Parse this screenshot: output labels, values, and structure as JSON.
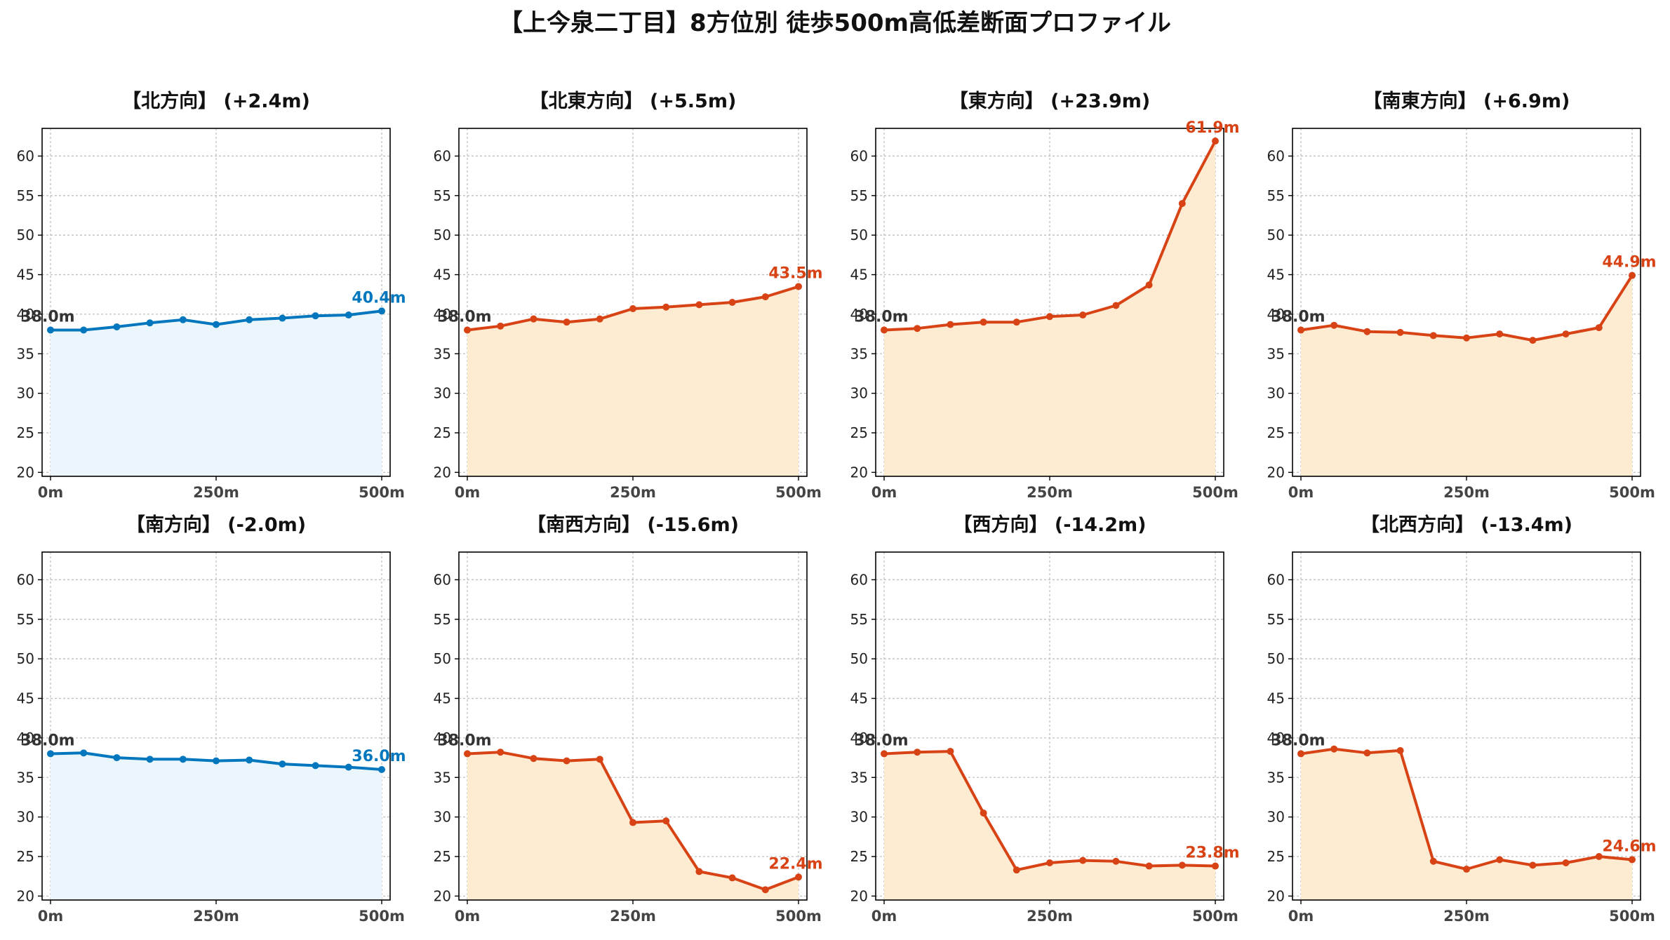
{
  "title": "【上今泉二丁目】8方位別 徒歩500m高低差断面プロファイル",
  "colors": {
    "up": "#d84315",
    "up_fill": "#fdecd2",
    "down": "#0277bd",
    "down_fill": "#eaf6fc"
  },
  "chart_data": [
    {
      "type": "area",
      "title": "【北方向】 (+2.4m)",
      "x": [
        "0m",
        "50m",
        "100m",
        "150m",
        "200m",
        "250m",
        "300m",
        "350m",
        "400m",
        "450m",
        "500m"
      ],
      "xticks": [
        "0m",
        "250m",
        "500m"
      ],
      "yticks": [
        "20",
        "25",
        "30",
        "35",
        "40",
        "45",
        "50",
        "55",
        "60"
      ],
      "ylim": [
        19.5,
        63.5
      ],
      "values": [
        38.0,
        38.0,
        38.4,
        38.9,
        39.3,
        38.7,
        39.3,
        39.5,
        39.8,
        39.9,
        40.4
      ],
      "start_label": "38.0m",
      "end_label": "40.4m",
      "trend": "down",
      "grid": true
    },
    {
      "type": "area",
      "title": "【北東方向】 (+5.5m)",
      "x": [
        "0m",
        "50m",
        "100m",
        "150m",
        "200m",
        "250m",
        "300m",
        "350m",
        "400m",
        "450m",
        "500m"
      ],
      "xticks": [
        "0m",
        "250m",
        "500m"
      ],
      "yticks": [
        "20",
        "25",
        "30",
        "35",
        "40",
        "45",
        "50",
        "55",
        "60"
      ],
      "ylim": [
        19.5,
        63.5
      ],
      "values": [
        38.0,
        38.5,
        39.4,
        39.0,
        39.4,
        40.7,
        40.9,
        41.2,
        41.5,
        42.2,
        43.5
      ],
      "start_label": "38.0m",
      "end_label": "43.5m",
      "trend": "up",
      "grid": true
    },
    {
      "type": "area",
      "title": "【東方向】 (+23.9m)",
      "x": [
        "0m",
        "50m",
        "100m",
        "150m",
        "200m",
        "250m",
        "300m",
        "350m",
        "400m",
        "450m",
        "500m"
      ],
      "xticks": [
        "0m",
        "250m",
        "500m"
      ],
      "yticks": [
        "20",
        "25",
        "30",
        "35",
        "40",
        "45",
        "50",
        "55",
        "60"
      ],
      "ylim": [
        19.5,
        63.5
      ],
      "values": [
        38.0,
        38.2,
        38.7,
        39.0,
        39.0,
        39.7,
        39.9,
        41.1,
        43.7,
        54.0,
        61.9
      ],
      "start_label": "38.0m",
      "end_label": "61.9m",
      "trend": "up",
      "grid": true
    },
    {
      "type": "area",
      "title": "【南東方向】 (+6.9m)",
      "x": [
        "0m",
        "50m",
        "100m",
        "150m",
        "200m",
        "250m",
        "300m",
        "350m",
        "400m",
        "450m",
        "500m"
      ],
      "xticks": [
        "0m",
        "250m",
        "500m"
      ],
      "yticks": [
        "20",
        "25",
        "30",
        "35",
        "40",
        "45",
        "50",
        "55",
        "60"
      ],
      "ylim": [
        19.5,
        63.5
      ],
      "values": [
        38.0,
        38.6,
        37.8,
        37.7,
        37.3,
        37.0,
        37.5,
        36.7,
        37.5,
        38.3,
        44.9
      ],
      "start_label": "38.0m",
      "end_label": "44.9m",
      "trend": "up",
      "grid": true
    },
    {
      "type": "area",
      "title": "【南方向】 (-2.0m)",
      "x": [
        "0m",
        "50m",
        "100m",
        "150m",
        "200m",
        "250m",
        "300m",
        "350m",
        "400m",
        "450m",
        "500m"
      ],
      "xticks": [
        "0m",
        "250m",
        "500m"
      ],
      "yticks": [
        "20",
        "25",
        "30",
        "35",
        "40",
        "45",
        "50",
        "55",
        "60"
      ],
      "ylim": [
        19.5,
        63.5
      ],
      "values": [
        38.0,
        38.1,
        37.5,
        37.3,
        37.3,
        37.1,
        37.2,
        36.7,
        36.5,
        36.3,
        36.0
      ],
      "start_label": "38.0m",
      "end_label": "36.0m",
      "trend": "down",
      "grid": true
    },
    {
      "type": "area",
      "title": "【南西方向】 (-15.6m)",
      "x": [
        "0m",
        "50m",
        "100m",
        "150m",
        "200m",
        "250m",
        "300m",
        "350m",
        "400m",
        "450m",
        "500m"
      ],
      "xticks": [
        "0m",
        "250m",
        "500m"
      ],
      "yticks": [
        "20",
        "25",
        "30",
        "35",
        "40",
        "45",
        "50",
        "55",
        "60"
      ],
      "ylim": [
        19.5,
        63.5
      ],
      "values": [
        38.0,
        38.2,
        37.4,
        37.1,
        37.3,
        29.3,
        29.5,
        23.1,
        22.3,
        20.8,
        22.4
      ],
      "start_label": "38.0m",
      "end_label": "22.4m",
      "trend": "up",
      "grid": true
    },
    {
      "type": "area",
      "title": "【西方向】 (-14.2m)",
      "x": [
        "0m",
        "50m",
        "100m",
        "150m",
        "200m",
        "250m",
        "300m",
        "350m",
        "400m",
        "450m",
        "500m"
      ],
      "xticks": [
        "0m",
        "250m",
        "500m"
      ],
      "yticks": [
        "20",
        "25",
        "30",
        "35",
        "40",
        "45",
        "50",
        "55",
        "60"
      ],
      "ylim": [
        19.5,
        63.5
      ],
      "values": [
        38.0,
        38.2,
        38.3,
        30.5,
        23.3,
        24.2,
        24.5,
        24.4,
        23.8,
        23.9,
        23.8
      ],
      "start_label": "38.0m",
      "end_label": "23.8m",
      "trend": "up",
      "grid": true
    },
    {
      "type": "area",
      "title": "【北西方向】 (-13.4m)",
      "x": [
        "0m",
        "50m",
        "100m",
        "150m",
        "200m",
        "250m",
        "300m",
        "350m",
        "400m",
        "450m",
        "500m"
      ],
      "xticks": [
        "0m",
        "250m",
        "500m"
      ],
      "yticks": [
        "20",
        "25",
        "30",
        "35",
        "40",
        "45",
        "50",
        "55",
        "60"
      ],
      "ylim": [
        19.5,
        63.5
      ],
      "values": [
        38.0,
        38.6,
        38.1,
        38.4,
        24.4,
        23.4,
        24.6,
        23.9,
        24.2,
        25.0,
        24.6
      ],
      "start_label": "38.0m",
      "end_label": "24.6m",
      "trend": "up",
      "grid": true
    }
  ]
}
